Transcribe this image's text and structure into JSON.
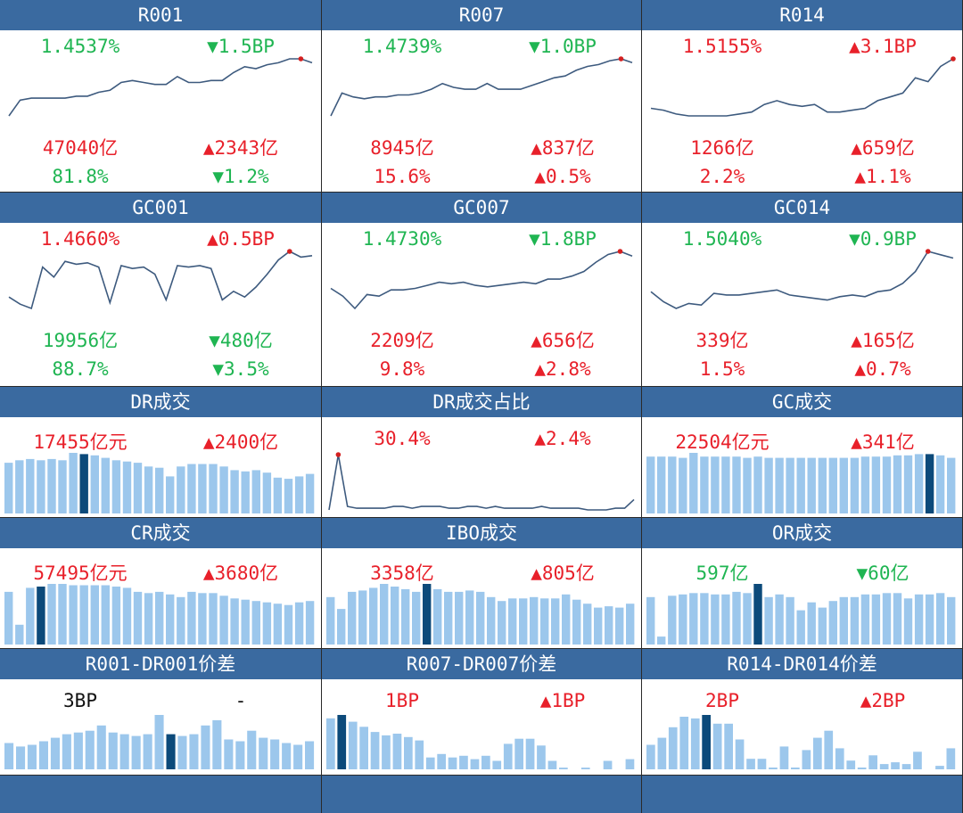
{
  "colors": {
    "header_bg": "#3a6aa0",
    "up": "#e8202a",
    "down": "#1fb552",
    "bar": "#9cc7ec",
    "bar_highlight": "#0c4a7a",
    "line": "#3d5a7e",
    "marker": "#d42020"
  },
  "rows": [
    {
      "type": "line",
      "panels": [
        {
          "id": "r001",
          "title": "R001",
          "rate": "1.4537%",
          "rate_dir": "down",
          "rate_chg": "▼1.5BP",
          "vol": "47040亿",
          "vol_dir": "up",
          "vol_chg": "▲2343亿",
          "share": "81.8%",
          "share_dir": "down",
          "share_chg": "▼1.2%",
          "series": [
            1.3,
            1.38,
            1.39,
            1.39,
            1.39,
            1.39,
            1.4,
            1.4,
            1.42,
            1.43,
            1.47,
            1.48,
            1.47,
            1.46,
            1.46,
            1.5,
            1.47,
            1.47,
            1.48,
            1.48,
            1.52,
            1.55,
            1.54,
            1.56,
            1.57,
            1.59,
            1.59,
            1.57
          ]
        },
        {
          "id": "r007",
          "title": "R007",
          "rate": "1.4739%",
          "rate_dir": "down",
          "rate_chg": "▼1.0BP",
          "vol": "8945亿",
          "vol_dir": "up",
          "vol_chg": "▲837亿",
          "share": "15.6%",
          "share_dir": "up",
          "share_chg": "▲0.5%",
          "series": [
            1.28,
            1.4,
            1.38,
            1.37,
            1.38,
            1.38,
            1.39,
            1.39,
            1.4,
            1.42,
            1.45,
            1.43,
            1.42,
            1.42,
            1.45,
            1.42,
            1.42,
            1.42,
            1.44,
            1.46,
            1.48,
            1.49,
            1.52,
            1.54,
            1.55,
            1.57,
            1.58,
            1.56
          ]
        },
        {
          "id": "r014",
          "title": "R014",
          "rate": "1.5155%",
          "rate_dir": "up",
          "rate_chg": "▲3.1BP",
          "vol": "1266亿",
          "vol_dir": "up",
          "vol_chg": "▲659亿",
          "share": "2.2%",
          "share_dir": "up",
          "share_chg": "▲1.1%",
          "series": [
            1.4,
            1.39,
            1.37,
            1.36,
            1.36,
            1.36,
            1.36,
            1.37,
            1.38,
            1.42,
            1.44,
            1.42,
            1.41,
            1.42,
            1.38,
            1.38,
            1.39,
            1.4,
            1.44,
            1.46,
            1.48,
            1.56,
            1.54,
            1.62,
            1.66
          ]
        }
      ]
    },
    {
      "type": "line",
      "panels": [
        {
          "id": "gc001",
          "title": "GC001",
          "rate": "1.4660%",
          "rate_dir": "up",
          "rate_chg": "▲0.5BP",
          "vol": "19956亿",
          "vol_dir": "down",
          "vol_chg": "▼480亿",
          "share": "88.7%",
          "share_dir": "down",
          "share_chg": "▼3.5%",
          "series": [
            1.2,
            1.15,
            1.12,
            1.41,
            1.34,
            1.45,
            1.43,
            1.44,
            1.41,
            1.16,
            1.42,
            1.4,
            1.41,
            1.36,
            1.18,
            1.42,
            1.41,
            1.42,
            1.4,
            1.18,
            1.24,
            1.2,
            1.27,
            1.36,
            1.46,
            1.52,
            1.48,
            1.49
          ]
        },
        {
          "id": "gc007",
          "title": "GC007",
          "rate": "1.4730%",
          "rate_dir": "down",
          "rate_chg": "▼1.8BP",
          "vol": "2209亿",
          "vol_dir": "up",
          "vol_chg": "▲656亿",
          "share": "9.8%",
          "share_dir": "up",
          "share_chg": "▲2.8%",
          "series": [
            1.3,
            1.25,
            1.17,
            1.26,
            1.25,
            1.29,
            1.29,
            1.3,
            1.32,
            1.34,
            1.33,
            1.34,
            1.32,
            1.31,
            1.32,
            1.33,
            1.34,
            1.33,
            1.36,
            1.36,
            1.38,
            1.41,
            1.47,
            1.52,
            1.54,
            1.51
          ]
        },
        {
          "id": "gc014",
          "title": "GC014",
          "rate": "1.5040%",
          "rate_dir": "down",
          "rate_chg": "▼0.9BP",
          "vol": "339亿",
          "vol_dir": "up",
          "vol_chg": "▲165亿",
          "share": "1.5%",
          "share_dir": "up",
          "share_chg": "▲0.7%",
          "series": [
            1.3,
            1.24,
            1.2,
            1.23,
            1.22,
            1.29,
            1.28,
            1.28,
            1.29,
            1.3,
            1.31,
            1.28,
            1.27,
            1.26,
            1.25,
            1.27,
            1.28,
            1.27,
            1.3,
            1.31,
            1.35,
            1.42,
            1.54,
            1.52,
            1.5
          ]
        }
      ]
    },
    {
      "type": "bar",
      "panels": [
        {
          "id": "dr-vol",
          "title": "DR成交",
          "v1": "17455亿元",
          "v1_dir": "up",
          "v2": "▲2400亿",
          "v2_dir": "up",
          "chart": "bar",
          "highlight": 7,
          "series": [
            82,
            86,
            88,
            86,
            88,
            86,
            98,
            96,
            94,
            90,
            86,
            84,
            82,
            76,
            74,
            60,
            76,
            80,
            80,
            80,
            76,
            70,
            68,
            70,
            66,
            58,
            56,
            60,
            64
          ]
        },
        {
          "id": "dr-share",
          "title": "DR成交占比",
          "v1": "30.4%",
          "v1_dir": "up",
          "v2": "▲2.4%",
          "v2_dir": "up",
          "chart": "line",
          "series": [
            28,
            60,
            30,
            29,
            29,
            29,
            29,
            30,
            30,
            29,
            30,
            30,
            30,
            29,
            29,
            30,
            30,
            29,
            30,
            29,
            29,
            29,
            29,
            30,
            29,
            29,
            29,
            29,
            28,
            28,
            28,
            29,
            29,
            34
          ]
        },
        {
          "id": "gc-vol",
          "title": "GC成交",
          "v1": "22504亿元",
          "v1_dir": "up",
          "v2": "▲341亿",
          "v2_dir": "up",
          "chart": "bar",
          "highlight": 26,
          "series": [
            92,
            92,
            92,
            90,
            98,
            92,
            92,
            92,
            92,
            90,
            92,
            90,
            90,
            90,
            90,
            90,
            90,
            90,
            90,
            90,
            92,
            92,
            92,
            94,
            94,
            96,
            96,
            94,
            90
          ]
        }
      ]
    },
    {
      "type": "bar",
      "panels": [
        {
          "id": "cr-vol",
          "title": "CR成交",
          "v1": "57495亿元",
          "v1_dir": "up",
          "v2": "▲3680亿",
          "v2_dir": "up",
          "chart": "bar",
          "highlight": 3,
          "series": [
            80,
            30,
            86,
            88,
            92,
            92,
            90,
            90,
            90,
            90,
            88,
            86,
            80,
            78,
            80,
            76,
            72,
            80,
            78,
            78,
            74,
            70,
            68,
            66,
            64,
            62,
            60,
            64,
            66
          ]
        },
        {
          "id": "ibo-vol",
          "title": "IBO成交",
          "v1": "3358亿",
          "v1_dir": "up",
          "v2": "▲805亿",
          "v2_dir": "up",
          "chart": "bar",
          "highlight": 9,
          "series": [
            72,
            54,
            80,
            82,
            86,
            92,
            88,
            84,
            80,
            92,
            84,
            80,
            80,
            82,
            80,
            72,
            66,
            70,
            70,
            72,
            70,
            70,
            76,
            68,
            62,
            56,
            58,
            56,
            62
          ]
        },
        {
          "id": "or-vol",
          "title": "OR成交",
          "v1": "597亿",
          "v1_dir": "down",
          "v2": "▼60亿",
          "v2_dir": "down",
          "chart": "bar",
          "highlight": 10,
          "series": [
            72,
            12,
            74,
            76,
            78,
            78,
            76,
            76,
            80,
            78,
            92,
            72,
            76,
            72,
            52,
            64,
            56,
            66,
            72,
            72,
            76,
            76,
            78,
            78,
            70,
            76,
            76,
            78,
            72
          ]
        }
      ]
    },
    {
      "type": "bar",
      "panels": [
        {
          "id": "r001-dr001",
          "title": "R001-DR001价差",
          "v1": "3BP",
          "v1_dir": "neutral",
          "v2": "-",
          "v2_dir": "neutral",
          "chart": "bar",
          "highlight": 14,
          "series": [
            30,
            26,
            28,
            32,
            36,
            40,
            42,
            44,
            50,
            42,
            40,
            38,
            40,
            62,
            40,
            38,
            40,
            50,
            56,
            34,
            32,
            44,
            36,
            34,
            30,
            28,
            32
          ]
        },
        {
          "id": "r007-dr007",
          "title": "R007-DR007价差",
          "v1": "1BP",
          "v1_dir": "up",
          "v2": "▲1BP",
          "v2_dir": "up",
          "chart": "bar",
          "highlight": 1,
          "series": [
            60,
            64,
            56,
            50,
            44,
            40,
            42,
            38,
            34,
            14,
            18,
            14,
            16,
            12,
            16,
            10,
            30,
            36,
            36,
            28,
            10,
            2,
            0,
            2,
            0,
            10,
            0,
            12
          ]
        },
        {
          "id": "r014-dr014",
          "title": "R014-DR014价差",
          "v1": "2BP",
          "v1_dir": "up",
          "v2": "▲2BP",
          "v2_dir": "up",
          "chart": "bar",
          "highlight": 5,
          "series": [
            28,
            36,
            48,
            60,
            58,
            62,
            52,
            52,
            34,
            12,
            12,
            2,
            26,
            2,
            22,
            36,
            44,
            24,
            10,
            2,
            16,
            6,
            8,
            6,
            20,
            0,
            4,
            24
          ]
        }
      ]
    }
  ]
}
